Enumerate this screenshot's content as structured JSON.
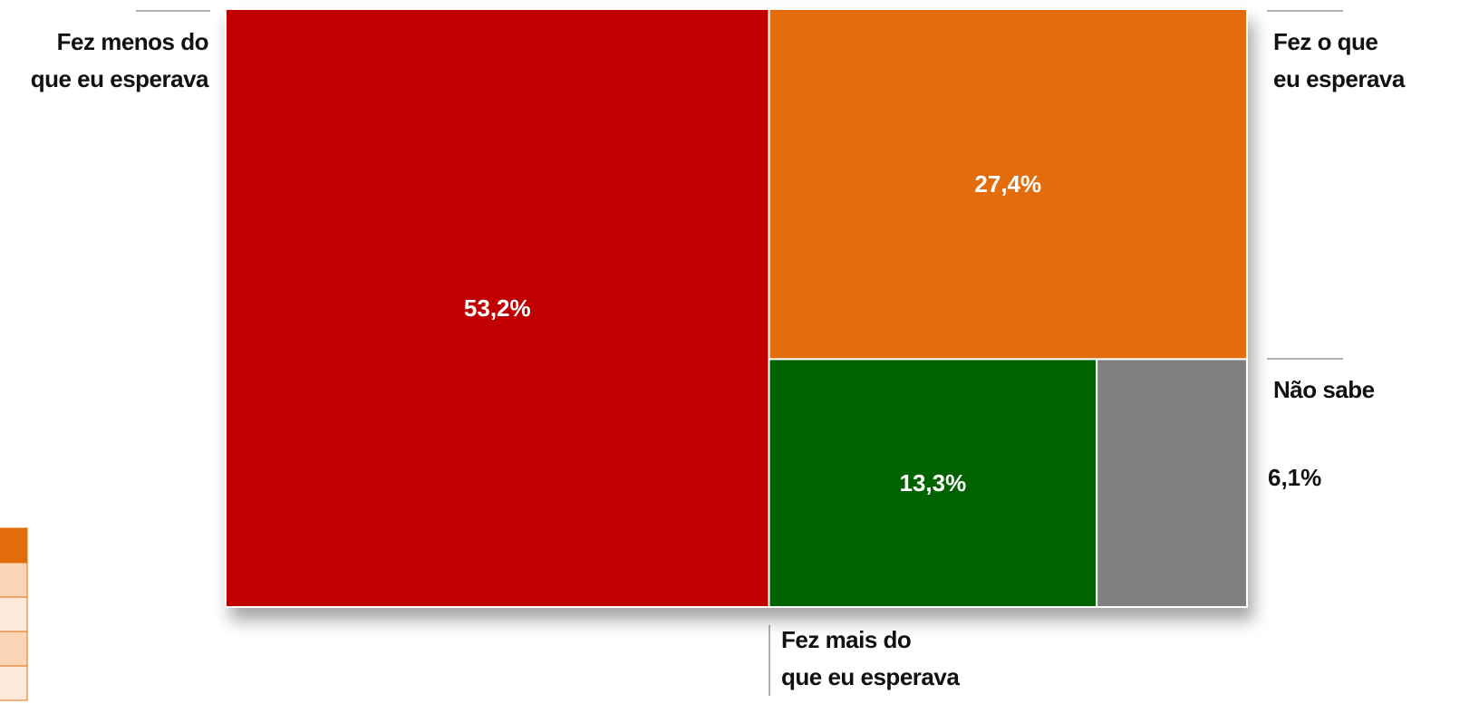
{
  "chart_data": {
    "type": "treemap",
    "categories": [
      "Fez menos do\nque eu esperava",
      "Fez o que\neu esperava",
      "Fez mais do\nque eu esperava",
      "Não sabe"
    ],
    "values": [
      53.2,
      27.4,
      13.3,
      6.1
    ],
    "value_labels": [
      "53,2%",
      "27,4%",
      "13,3%",
      "6,1%"
    ],
    "colors": [
      "#c00000",
      "#e36c0a",
      "#006400",
      "#808080"
    ]
  }
}
